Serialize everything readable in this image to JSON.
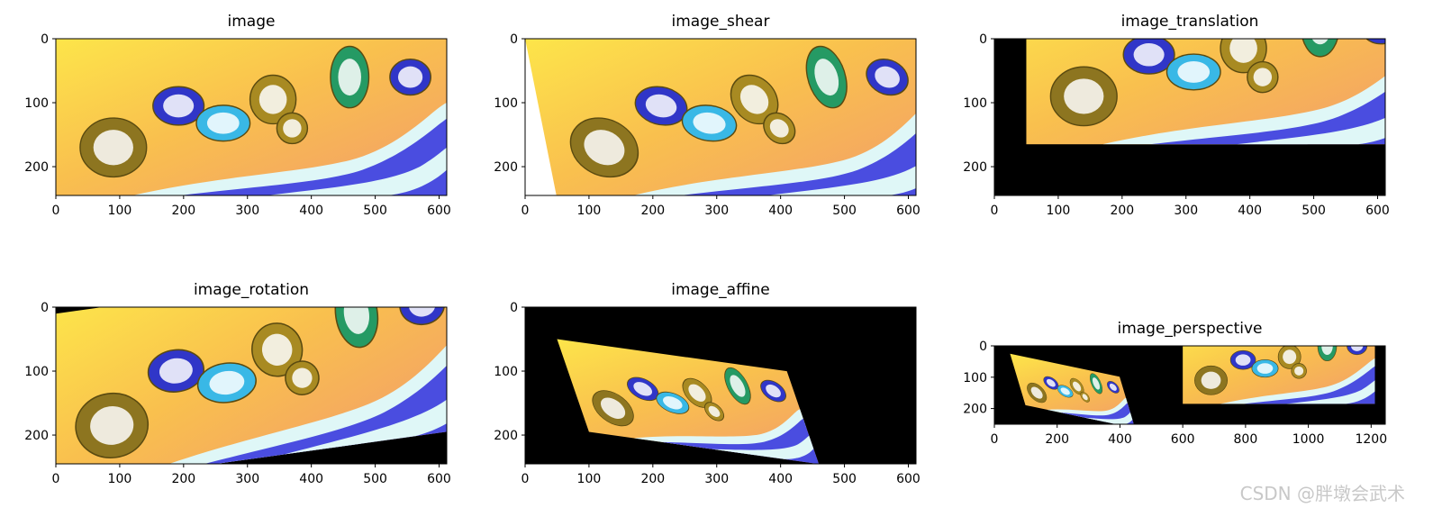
{
  "chart_data": [
    {
      "type": "image",
      "title": "image",
      "xlim": [
        0,
        612
      ],
      "ylim": [
        245,
        0
      ],
      "xticks": [
        0,
        100,
        200,
        300,
        400,
        500,
        600
      ],
      "yticks": [
        0,
        100,
        200
      ]
    },
    {
      "type": "image",
      "title": "image_shear",
      "xlim": [
        0,
        612
      ],
      "ylim": [
        245,
        0
      ],
      "xticks": [
        0,
        100,
        200,
        300,
        400,
        500,
        600
      ],
      "yticks": [
        0,
        100,
        200
      ]
    },
    {
      "type": "image",
      "title": "image_translation",
      "xlim": [
        0,
        612
      ],
      "ylim": [
        245,
        0
      ],
      "xticks": [
        0,
        100,
        200,
        300,
        400,
        500,
        600
      ],
      "yticks": [
        0,
        100,
        200
      ]
    },
    {
      "type": "image",
      "title": "image_rotation",
      "xlim": [
        0,
        612
      ],
      "ylim": [
        245,
        0
      ],
      "xticks": [
        0,
        100,
        200,
        300,
        400,
        500,
        600
      ],
      "yticks": [
        0,
        100,
        200
      ]
    },
    {
      "type": "image",
      "title": "image_affine",
      "xlim": [
        0,
        612
      ],
      "ylim": [
        245,
        0
      ],
      "xticks": [
        0,
        100,
        200,
        300,
        400,
        500,
        600
      ],
      "yticks": [
        0,
        100,
        200
      ]
    },
    {
      "type": "image",
      "title": "image_perspective",
      "xlim": [
        0,
        1245
      ],
      "ylim": [
        250,
        0
      ],
      "xticks": [
        0,
        200,
        400,
        600,
        800,
        1000,
        1200
      ],
      "yticks": [
        0,
        100,
        200
      ]
    }
  ],
  "watermark": "CSDN @胖墩会武术"
}
